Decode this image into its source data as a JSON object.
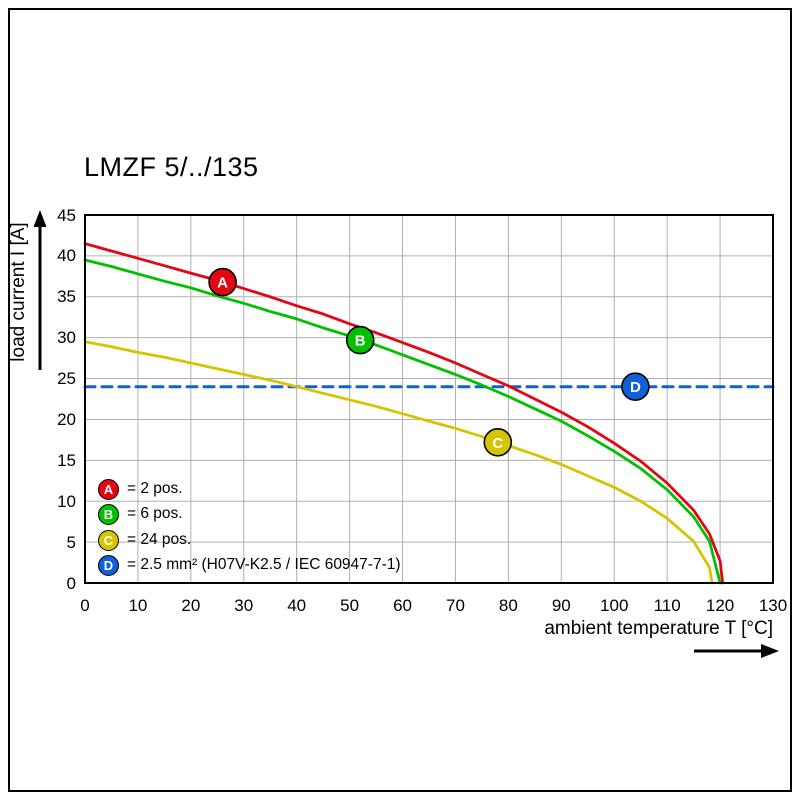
{
  "chart_data": {
    "type": "line",
    "title": "LMZF 5/../135",
    "xlabel": "ambient temperature T [°C]",
    "ylabel": "load current I [A]",
    "xlim": [
      0,
      130
    ],
    "ylim": [
      0,
      45
    ],
    "xticks": [
      0,
      10,
      20,
      30,
      40,
      50,
      60,
      70,
      80,
      90,
      100,
      110,
      120,
      130
    ],
    "yticks": [
      0,
      5,
      10,
      15,
      20,
      25,
      30,
      35,
      40,
      45
    ],
    "grid": true,
    "grid_color": "#b0b0b0",
    "series": [
      {
        "id": "A",
        "label": "2 pos.",
        "color": "#e30613",
        "dash": false,
        "points": [
          [
            0,
            41.5
          ],
          [
            5,
            40.6
          ],
          [
            10,
            39.7
          ],
          [
            15,
            38.8
          ],
          [
            20,
            37.9
          ],
          [
            25,
            37.0
          ],
          [
            30,
            36.0
          ],
          [
            35,
            35.0
          ],
          [
            40,
            33.9
          ],
          [
            45,
            32.9
          ],
          [
            50,
            31.7
          ],
          [
            55,
            30.6
          ],
          [
            60,
            29.4
          ],
          [
            65,
            28.2
          ],
          [
            70,
            26.9
          ],
          [
            75,
            25.5
          ],
          [
            80,
            24.1
          ],
          [
            85,
            22.5
          ],
          [
            90,
            20.9
          ],
          [
            95,
            19.1
          ],
          [
            100,
            17.1
          ],
          [
            105,
            14.9
          ],
          [
            110,
            12.2
          ],
          [
            115,
            8.9
          ],
          [
            118,
            6.0
          ],
          [
            120,
            2.7
          ],
          [
            120.5,
            0
          ]
        ]
      },
      {
        "id": "B",
        "label": "6 pos.",
        "color": "#00c000",
        "dash": false,
        "points": [
          [
            0,
            39.5
          ],
          [
            5,
            38.7
          ],
          [
            10,
            37.8
          ],
          [
            15,
            36.9
          ],
          [
            20,
            36.1
          ],
          [
            25,
            35.1
          ],
          [
            30,
            34.2
          ],
          [
            35,
            33.2
          ],
          [
            40,
            32.3
          ],
          [
            45,
            31.2
          ],
          [
            50,
            30.2
          ],
          [
            55,
            29.1
          ],
          [
            60,
            27.9
          ],
          [
            65,
            26.7
          ],
          [
            70,
            25.5
          ],
          [
            75,
            24.2
          ],
          [
            80,
            22.8
          ],
          [
            85,
            21.3
          ],
          [
            90,
            19.8
          ],
          [
            95,
            18.0
          ],
          [
            100,
            16.1
          ],
          [
            105,
            14.0
          ],
          [
            110,
            11.4
          ],
          [
            115,
            8.1
          ],
          [
            118,
            5.1
          ],
          [
            120,
            0
          ]
        ]
      },
      {
        "id": "C",
        "label": "24 pos.",
        "color": "#d6c400",
        "dash": false,
        "points": [
          [
            0,
            29.5
          ],
          [
            5,
            28.9
          ],
          [
            10,
            28.2
          ],
          [
            15,
            27.6
          ],
          [
            20,
            26.9
          ],
          [
            25,
            26.2
          ],
          [
            30,
            25.5
          ],
          [
            35,
            24.8
          ],
          [
            40,
            24.0
          ],
          [
            45,
            23.2
          ],
          [
            50,
            22.4
          ],
          [
            55,
            21.6
          ],
          [
            60,
            20.7
          ],
          [
            65,
            19.8
          ],
          [
            70,
            18.9
          ],
          [
            75,
            17.9
          ],
          [
            80,
            16.8
          ],
          [
            85,
            15.7
          ],
          [
            90,
            14.5
          ],
          [
            95,
            13.1
          ],
          [
            100,
            11.7
          ],
          [
            105,
            10.0
          ],
          [
            110,
            7.9
          ],
          [
            115,
            5.1
          ],
          [
            118,
            1.9
          ],
          [
            118.5,
            0
          ]
        ]
      },
      {
        "id": "D",
        "label": "2.5 mm² (H07V-K2.5 / IEC 60947-7-1)",
        "color": "#1060d8",
        "dash": true,
        "points": [
          [
            0,
            24
          ],
          [
            130,
            24
          ]
        ]
      }
    ],
    "markers": [
      {
        "letter": "A",
        "x": 26,
        "y": 36.8
      },
      {
        "letter": "B",
        "x": 52,
        "y": 29.7
      },
      {
        "letter": "C",
        "x": 78,
        "y": 17.2
      },
      {
        "letter": "D",
        "x": 104,
        "y": 24
      }
    ],
    "legend": [
      {
        "letter": "A",
        "color": "#e30613",
        "label": "= 2 pos."
      },
      {
        "letter": "B",
        "color": "#00c000",
        "label": "= 6 pos."
      },
      {
        "letter": "C",
        "color": "#d6c400",
        "label": "= 24 pos."
      },
      {
        "letter": "D",
        "color": "#1060d8",
        "label": "= 2.5 mm² (H07V-K2.5 / IEC 60947-7-1)"
      }
    ]
  }
}
